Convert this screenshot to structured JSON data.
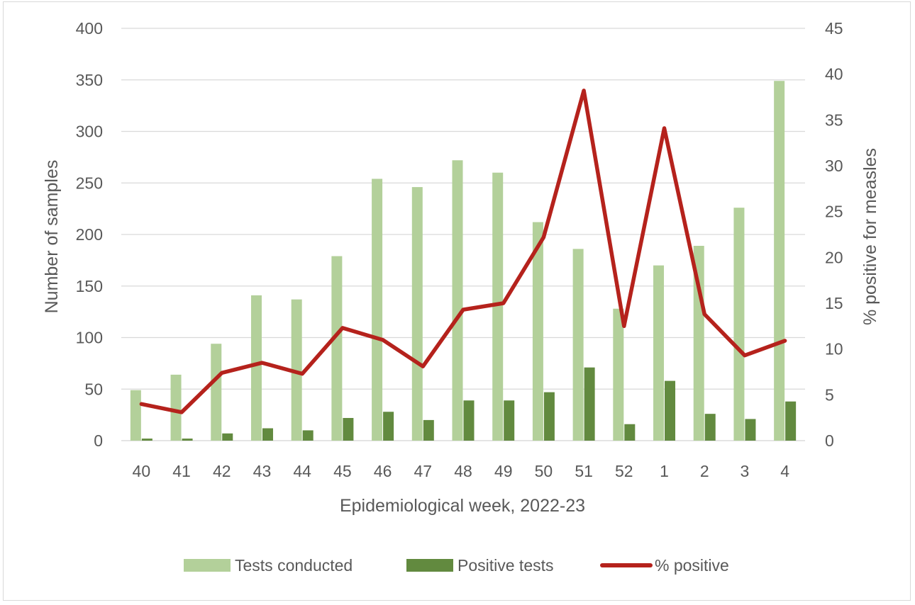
{
  "chart_data": {
    "type": "bar",
    "title": "",
    "categories": [
      "40",
      "41",
      "42",
      "43",
      "44",
      "45",
      "46",
      "47",
      "48",
      "49",
      "50",
      "51",
      "52",
      "1",
      "2",
      "3",
      "4"
    ],
    "xlabel": "Epidemiological week, 2022-23",
    "ylabel": "Number of samples",
    "y2label": "% positive for measles",
    "ylim": [
      0,
      400
    ],
    "y2lim": [
      0,
      45
    ],
    "yticks": [
      "0",
      "50",
      "100",
      "150",
      "200",
      "250",
      "300",
      "350",
      "400"
    ],
    "y2ticks": [
      "0",
      "5",
      "10",
      "15",
      "20",
      "25",
      "30",
      "35",
      "40",
      "45"
    ],
    "grid": true,
    "legend_position": "bottom",
    "series": [
      {
        "name": "Tests conducted",
        "type": "bar",
        "axis": "left",
        "color": "#b3d09a",
        "values": [
          49,
          64,
          94,
          141,
          137,
          179,
          254,
          246,
          272,
          260,
          212,
          186,
          128,
          170,
          189,
          226,
          349
        ]
      },
      {
        "name": "Positive tests",
        "type": "bar",
        "axis": "left",
        "color": "#628a3f",
        "values": [
          2,
          2,
          7,
          12,
          10,
          22,
          28,
          20,
          39,
          39,
          47,
          71,
          16,
          58,
          26,
          21,
          38
        ]
      },
      {
        "name": "% positive",
        "type": "line",
        "axis": "right",
        "color": "#b5221c",
        "values": [
          4.0,
          3.1,
          7.4,
          8.5,
          7.3,
          12.3,
          11.0,
          8.1,
          14.3,
          15.0,
          22.2,
          38.2,
          12.5,
          34.1,
          13.8,
          9.3,
          10.9
        ]
      }
    ]
  }
}
